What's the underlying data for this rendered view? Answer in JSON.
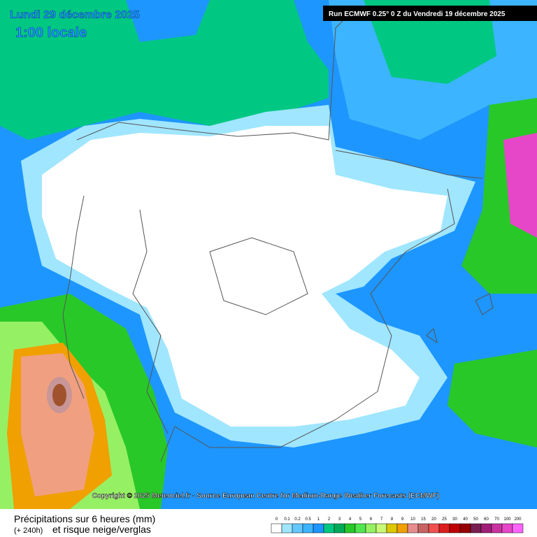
{
  "header": {
    "date": "Lundi 29 décembre 2025",
    "time": "1:00 locale",
    "run": "Run ECMWF 0.25° 0 Z du Vendredi 19 décembre 2025"
  },
  "copyright": "Copyright © 2025 Meteociel.fr - Source European Centre for Medium-Range Weather Forecasts (ECMWF)",
  "footer": {
    "title": "Précipitations sur 6 heures (mm)",
    "lead": "(+ 240h)",
    "subtitle": "et risque neige/verglas"
  },
  "legend": {
    "labels": [
      "0",
      "0.1",
      "0.2",
      "0.5",
      "1",
      "2",
      "3",
      "4",
      "5",
      "6",
      "7",
      "8",
      "9",
      "10",
      "15",
      "20",
      "25",
      "30",
      "40",
      "50",
      "60",
      "70",
      "100",
      "200"
    ],
    "colors": [
      "#ffffff",
      "#a0e6ff",
      "#64c8ff",
      "#3cb4ff",
      "#1e96ff",
      "#00c882",
      "#00aa5a",
      "#28c828",
      "#50e650",
      "#96f064",
      "#c8fa78",
      "#dcc800",
      "#f0a000",
      "#e68c8c",
      "#c86464",
      "#f05050",
      "#dc1e1e",
      "#be0000",
      "#960000",
      "#781e50",
      "#a01e78",
      "#c832a0",
      "#e646c8",
      "#ff64ff"
    ]
  }
}
